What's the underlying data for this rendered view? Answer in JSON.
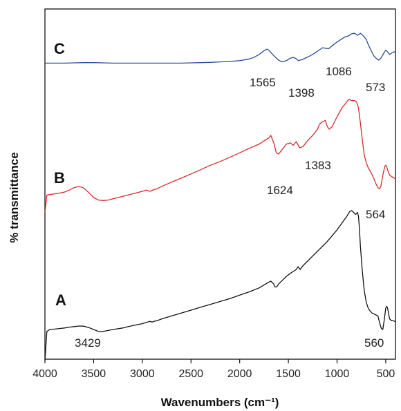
{
  "chart_data": {
    "type": "line",
    "xlabel": "Wavenumbers (cm⁻¹)",
    "ylabel": "% transmittance",
    "xlim": [
      4000,
      400
    ],
    "x_reversed": true,
    "xticks": [
      "4000",
      "3500",
      "3000",
      "2500",
      "2000",
      "1500",
      "1000",
      "500"
    ],
    "y_ticks_shown": false,
    "grid": false,
    "series": [
      {
        "name": "C",
        "color": "#2b4a9a",
        "x": [
          4000,
          3900,
          3800,
          3700,
          3600,
          3500,
          3400,
          3300,
          3200,
          3100,
          3000,
          2900,
          2800,
          2700,
          2600,
          2500,
          2400,
          2300,
          2200,
          2100,
          2000,
          1900,
          1850,
          1800,
          1750,
          1720,
          1700,
          1650,
          1600,
          1565,
          1520,
          1480,
          1450,
          1420,
          1398,
          1360,
          1300,
          1250,
          1200,
          1150,
          1120,
          1086,
          1050,
          1000,
          960,
          920,
          880,
          850,
          820,
          790,
          760,
          730,
          700,
          680,
          650,
          620,
          600,
          573,
          550,
          520,
          500,
          480,
          460,
          440,
          420,
          400
        ],
        "values": [
          0.1,
          0.1,
          0.1,
          0.11,
          0.12,
          0.12,
          0.11,
          0.1,
          0.1,
          0.1,
          0.1,
          0.1,
          0.1,
          0.1,
          0.1,
          0.11,
          0.12,
          0.13,
          0.15,
          0.17,
          0.2,
          0.27,
          0.34,
          0.45,
          0.6,
          0.66,
          0.62,
          0.4,
          0.22,
          0.15,
          0.2,
          0.3,
          0.33,
          0.28,
          0.2,
          0.24,
          0.35,
          0.45,
          0.58,
          0.72,
          0.7,
          0.68,
          0.8,
          0.95,
          1.05,
          1.15,
          1.2,
          1.28,
          1.3,
          1.22,
          1.3,
          1.2,
          1.05,
          0.85,
          0.6,
          0.38,
          0.3,
          0.22,
          0.3,
          0.5,
          0.62,
          0.55,
          0.45,
          0.5,
          0.55,
          0.55
        ]
      },
      {
        "name": "B",
        "color": "#d62a2a",
        "x": [
          4000,
          3980,
          3950,
          3900,
          3850,
          3800,
          3750,
          3700,
          3650,
          3600,
          3550,
          3500,
          3450,
          3400,
          3350,
          3300,
          3200,
          3100,
          3000,
          2960,
          2920,
          2880,
          2850,
          2800,
          2700,
          2600,
          2500,
          2400,
          2300,
          2200,
          2100,
          2000,
          1900,
          1800,
          1750,
          1700,
          1680,
          1650,
          1624,
          1600,
          1560,
          1520,
          1480,
          1450,
          1420,
          1383,
          1350,
          1300,
          1250,
          1200,
          1180,
          1150,
          1120,
          1100,
          1080,
          1050,
          1000,
          950,
          900,
          880,
          850,
          820,
          800,
          780,
          760,
          740,
          720,
          700,
          680,
          650,
          620,
          600,
          580,
          564,
          550,
          530,
          510,
          500,
          490,
          480,
          460,
          440,
          420,
          400
        ],
        "values": [
          -0.6,
          0.1,
          0.12,
          0.15,
          0.18,
          0.22,
          0.3,
          0.4,
          0.45,
          0.38,
          0.2,
          0.0,
          -0.1,
          -0.12,
          -0.1,
          -0.05,
          0.05,
          0.15,
          0.25,
          0.3,
          0.25,
          0.32,
          0.35,
          0.45,
          0.62,
          0.78,
          0.95,
          1.12,
          1.3,
          1.45,
          1.62,
          1.8,
          1.98,
          2.15,
          2.28,
          2.4,
          2.5,
          2.2,
          1.8,
          1.75,
          1.95,
          2.15,
          2.2,
          2.1,
          2.25,
          2.0,
          2.05,
          2.3,
          2.5,
          2.75,
          2.95,
          3.05,
          3.1,
          2.85,
          2.75,
          2.85,
          3.25,
          3.6,
          3.85,
          3.95,
          3.9,
          3.9,
          3.85,
          3.6,
          3.0,
          2.3,
          1.7,
          1.4,
          1.2,
          1.0,
          0.75,
          0.55,
          0.4,
          0.35,
          0.45,
          0.9,
          1.25,
          1.3,
          1.25,
          1.1,
          0.9,
          0.85,
          0.8,
          0.75
        ]
      },
      {
        "name": "A",
        "color": "#111111",
        "x": [
          4000,
          3980,
          3950,
          3900,
          3850,
          3800,
          3750,
          3700,
          3650,
          3600,
          3550,
          3500,
          3450,
          3429,
          3400,
          3350,
          3300,
          3200,
          3100,
          3000,
          2950,
          2920,
          2900,
          2880,
          2850,
          2800,
          2700,
          2600,
          2500,
          2400,
          2300,
          2200,
          2100,
          2000,
          1900,
          1800,
          1750,
          1700,
          1680,
          1650,
          1640,
          1620,
          1600,
          1560,
          1520,
          1480,
          1450,
          1420,
          1400,
          1380,
          1350,
          1300,
          1250,
          1200,
          1150,
          1100,
          1050,
          1000,
          950,
          900,
          870,
          850,
          830,
          810,
          800,
          790,
          780,
          770,
          760,
          740,
          720,
          700,
          680,
          660,
          640,
          620,
          600,
          580,
          560,
          545,
          530,
          515,
          500,
          490,
          480,
          470,
          460,
          440,
          420,
          400
        ],
        "values": [
          -1.6,
          -0.1,
          0.0,
          0.02,
          0.05,
          0.08,
          0.12,
          0.15,
          0.18,
          0.17,
          0.1,
          0.0,
          -0.1,
          -0.12,
          -0.1,
          -0.05,
          0.0,
          0.08,
          0.2,
          0.3,
          0.38,
          0.42,
          0.38,
          0.42,
          0.45,
          0.55,
          0.7,
          0.85,
          1.0,
          1.15,
          1.3,
          1.45,
          1.6,
          1.78,
          1.95,
          2.15,
          2.3,
          2.45,
          2.5,
          2.35,
          2.2,
          2.2,
          2.35,
          2.55,
          2.75,
          2.9,
          3.0,
          3.1,
          3.25,
          3.1,
          3.3,
          3.55,
          3.8,
          4.05,
          4.3,
          4.55,
          4.85,
          5.15,
          5.5,
          5.85,
          6.1,
          6.15,
          6.05,
          5.95,
          6.0,
          6.05,
          5.85,
          5.2,
          4.3,
          3.0,
          2.0,
          1.4,
          1.1,
          0.95,
          0.85,
          0.8,
          0.75,
          0.7,
          0.3,
          0.05,
          0.0,
          0.5,
          1.1,
          1.2,
          1.1,
          0.8,
          0.55,
          0.45,
          0.45,
          0.4
        ]
      }
    ],
    "series_labels": [
      {
        "text": "C",
        "series": 0
      },
      {
        "text": "B",
        "series": 1
      },
      {
        "text": "A",
        "series": 2
      }
    ],
    "annotations": [
      {
        "text": "1565",
        "series": 0
      },
      {
        "text": "1398",
        "series": 0
      },
      {
        "text": "1086",
        "series": 0
      },
      {
        "text": "573",
        "series": 0
      },
      {
        "text": "1624",
        "series": 1
      },
      {
        "text": "1383",
        "series": 1
      },
      {
        "text": "564",
        "series": 1
      },
      {
        "text": "3429",
        "series": 2
      },
      {
        "text": "560",
        "series": 2
      }
    ]
  }
}
